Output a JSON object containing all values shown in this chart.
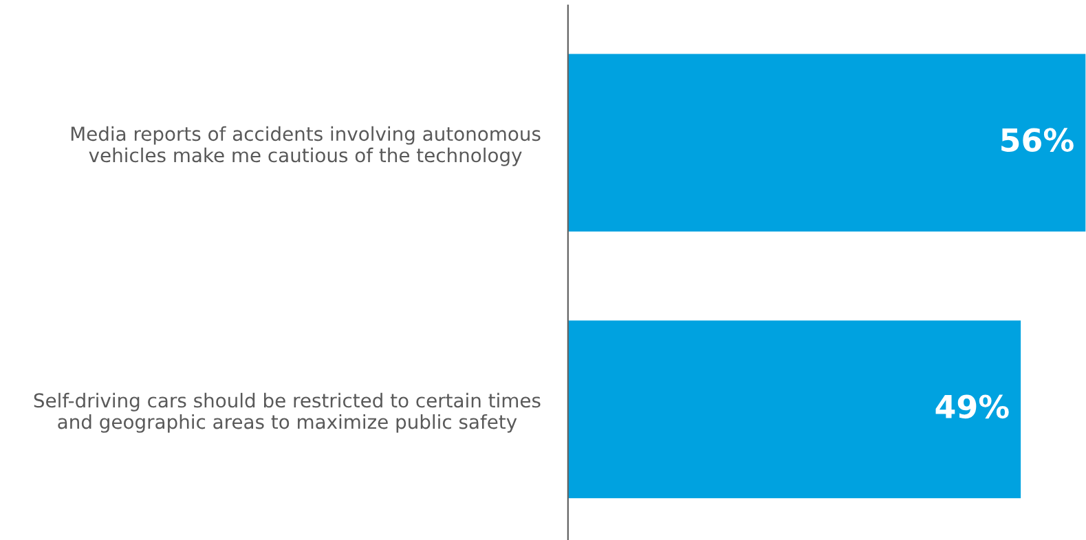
{
  "chart_data": {
    "type": "bar",
    "orientation": "horizontal",
    "categories": [
      "Media reports of accidents involving autonomous\nvehicles make me cautious of the technology",
      "Self-driving cars should be restricted to certain times\nand geographic areas to maximize public safety"
    ],
    "values": [
      56,
      49
    ],
    "value_labels": [
      "56%",
      "49%"
    ],
    "color": "#00a2e0",
    "xlim": [
      0,
      56
    ],
    "tick_labels": "y",
    "grid": false,
    "legend": false
  }
}
